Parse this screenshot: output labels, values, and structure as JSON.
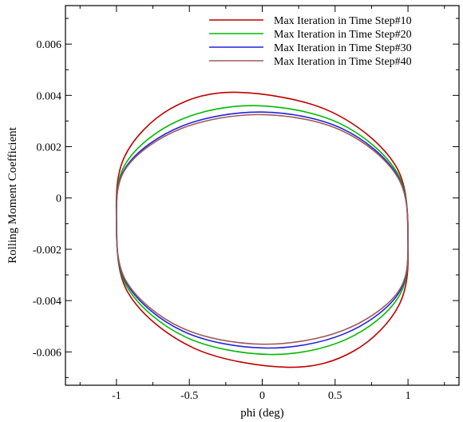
{
  "chart_data": {
    "type": "line",
    "title": "",
    "xlabel": "phi (deg)",
    "ylabel": "Rolling Moment Coefficient",
    "xlim": [
      -1.35,
      1.35
    ],
    "ylim": [
      -0.0073,
      0.0075
    ],
    "x_ticks": [
      -1,
      -0.5,
      0,
      0.5,
      1
    ],
    "x_tick_labels": [
      "-1",
      "-0.5",
      "0",
      "0.5",
      "1"
    ],
    "y_ticks": [
      -0.006,
      -0.004,
      -0.002,
      0,
      0.002,
      0.004,
      0.006
    ],
    "y_tick_labels": [
      "-0.006",
      "-0.004",
      "-0.002",
      "0",
      "0.002",
      "0.004",
      "0.006"
    ],
    "grid": false,
    "legend_position": "top-right",
    "series": [
      {
        "name": "Max Iteration in Time Step#10",
        "color": "#c00000",
        "top": {
          "x": -0.18,
          "y": 0.00412
        },
        "bottom": {
          "x": 0.18,
          "y": -0.0066
        },
        "right_cross_y": -0.00165,
        "left_cross_y": -0.00085
      },
      {
        "name": "Max Iteration in Time Step#20",
        "color": "#00bb00",
        "top": {
          "x": -0.05,
          "y": 0.0036
        },
        "bottom": {
          "x": 0.05,
          "y": -0.0061
        },
        "right_cross_y": -0.00165,
        "left_cross_y": -0.00085
      },
      {
        "name": "Max Iteration in Time Step#30",
        "color": "#2222dd",
        "top": {
          "x": 0.0,
          "y": 0.00335
        },
        "bottom": {
          "x": 0.02,
          "y": -0.00585
        },
        "right_cross_y": -0.00165,
        "left_cross_y": -0.00085
      },
      {
        "name": "Max Iteration in Time Step#40",
        "color": "#a05a5a",
        "top": {
          "x": 0.0,
          "y": 0.00325
        },
        "bottom": {
          "x": 0.0,
          "y": -0.0057
        },
        "right_cross_y": -0.00165,
        "left_cross_y": -0.00085
      }
    ]
  }
}
